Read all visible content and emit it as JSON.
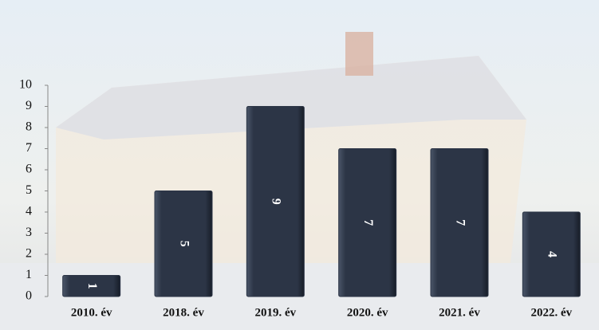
{
  "chart_data": {
    "type": "bar",
    "categories": [
      "2010. év",
      "2018. év",
      "2019. év",
      "2020. év",
      "2021. év",
      "2022. év"
    ],
    "values": [
      1,
      5,
      9,
      7,
      7,
      4
    ],
    "color": "#2c3546",
    "ylim": [
      0,
      10
    ],
    "yticks": [
      0,
      1,
      2,
      3,
      4,
      5,
      6,
      7,
      8,
      9,
      10
    ],
    "data_labels": true
  }
}
